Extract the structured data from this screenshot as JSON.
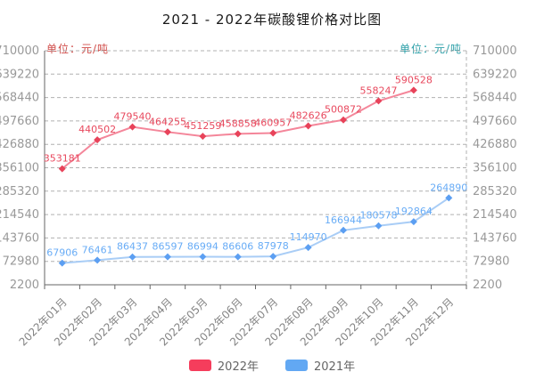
{
  "title": "2021 - 2022年碳酸锂价格对比图",
  "left_unit_label": "单位：元/吨",
  "right_unit_label": "单位：元/吨",
  "colors": {
    "left_unit_text": "#d04c49",
    "right_unit_text": "#2b9fa8",
    "axis_tick_text": "#999999",
    "x_axis_text": "#848484",
    "grid_line": "#b0b0b0",
    "axis_line": "#666666",
    "red_line": "#f4869a",
    "red_marker": "#e8435a",
    "red_label": "#e8495e",
    "blue_line": "#a9cdf6",
    "blue_marker": "#5c9ff2",
    "blue_label": "#68acf6"
  },
  "legend": [
    {
      "label": "2022年",
      "color": "#f53d5c"
    },
    {
      "label": "2021年",
      "color": "#62a8f3"
    }
  ],
  "chart_data": {
    "type": "line",
    "categories": [
      "2022年01月",
      "2022年02月",
      "2022年03月",
      "2022年04月",
      "2022年05月",
      "2022年06月",
      "2022年07月",
      "2022年08月",
      "2022年09月",
      "2022年10月",
      "2022年11月",
      "2022年12月"
    ],
    "y_ticks": [
      2200,
      72980,
      143760,
      214540,
      285320,
      356100,
      426880,
      497660,
      568440,
      639220,
      710000
    ],
    "ylim": [
      2200,
      710000
    ],
    "grid": true,
    "legend_position": "bottom",
    "series": [
      {
        "name": "2022年",
        "values": [
          353181,
          440502,
          479540,
          464255,
          451259,
          458858,
          460957,
          482626,
          500872,
          558247,
          590528,
          null
        ]
      },
      {
        "name": "2021年",
        "values": [
          67906,
          76461,
          86437,
          86597,
          86994,
          86606,
          87978,
          114970,
          166944,
          180578,
          192864,
          264890
        ]
      }
    ]
  }
}
